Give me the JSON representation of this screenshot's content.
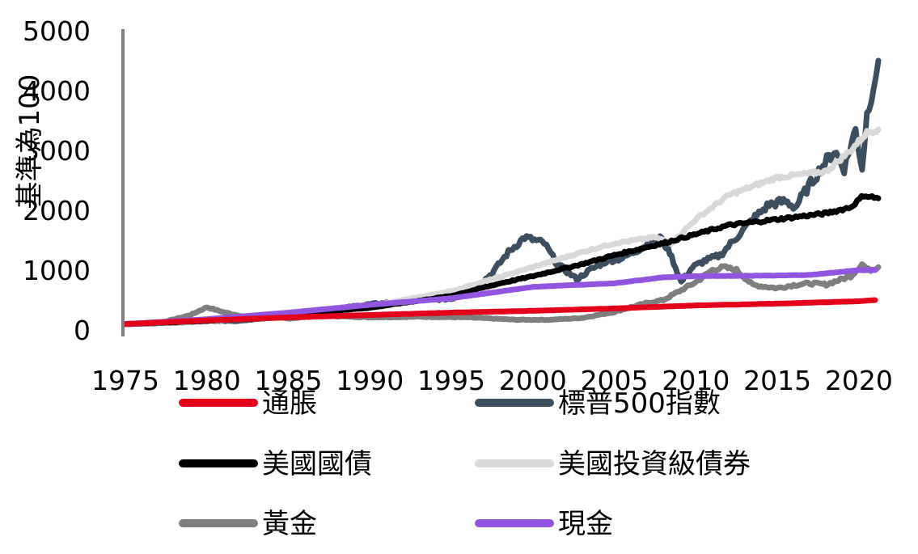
{
  "chart_data": {
    "type": "line",
    "title": "",
    "xlabel": "",
    "ylabel": "基準為100",
    "xlim": [
      1975,
      2021
    ],
    "ylim": [
      0,
      5000
    ],
    "grid": false,
    "legend_position": "bottom",
    "x_ticks": [
      "1975",
      "1980",
      "1985",
      "1990",
      "1995",
      "2000",
      "2005",
      "2010",
      "2015",
      "2020"
    ],
    "y_ticks": [
      "0",
      "1000",
      "2000",
      "3000",
      "4000",
      "5000"
    ],
    "series": [
      {
        "name": "通脹",
        "color": "#e3001b",
        "x": [
          1975,
          1980,
          1985,
          1990,
          1995,
          2000,
          2005,
          2010,
          2015,
          2020,
          2021
        ],
        "y": [
          100,
          160,
          210,
          250,
          290,
          320,
          360,
          410,
          440,
          480,
          500
        ]
      },
      {
        "name": "標普500指數",
        "color": "#3d4f5f",
        "x": [
          1975,
          1978,
          1980,
          1982,
          1985,
          1987,
          1990,
          1993,
          1995,
          1996.5,
          1997.5,
          1998.5,
          1999.5,
          2000.7,
          2001.5,
          2002.7,
          2003.5,
          2004.5,
          2005.5,
          2006.5,
          2007.8,
          2008.4,
          2009.1,
          2009.8,
          2010.5,
          2011.5,
          2012.5,
          2013.5,
          2014.5,
          2015.5,
          2016.1,
          2016.8,
          2017.8,
          2018.5,
          2019.1,
          2019.8,
          2020.2,
          2020.5,
          2020.9,
          2021.2
        ],
        "y": [
          100,
          120,
          150,
          150,
          240,
          320,
          430,
          500,
          520,
          700,
          950,
          1300,
          1550,
          1450,
          1100,
          850,
          1000,
          1150,
          1200,
          1350,
          1550,
          1300,
          800,
          1050,
          1150,
          1250,
          1550,
          1850,
          2100,
          2150,
          2050,
          2350,
          2750,
          3000,
          2700,
          3350,
          2700,
          3600,
          4100,
          4500
        ]
      },
      {
        "name": "美國國債",
        "color": "#000000",
        "x": [
          1975,
          1980,
          1985,
          1990,
          1995,
          1998,
          2000,
          2003,
          2005,
          2008,
          2010,
          2012,
          2015,
          2018,
          2019.5,
          2020.3,
          2021.2
        ],
        "y": [
          100,
          150,
          260,
          370,
          570,
          780,
          900,
          1100,
          1250,
          1450,
          1600,
          1750,
          1850,
          1950,
          2050,
          2250,
          2200
        ]
      },
      {
        "name": "美國投資級債券",
        "color": "#d9d9d9",
        "x": [
          1975,
          1980,
          1985,
          1990,
          1995,
          2000,
          2003,
          2005,
          2007.5,
          2008.5,
          2010,
          2012,
          2015,
          2018,
          2019.5,
          2020.5,
          2021.2
        ],
        "y": [
          100,
          140,
          270,
          400,
          650,
          1050,
          1300,
          1450,
          1550,
          1450,
          1850,
          2250,
          2550,
          2650,
          3000,
          3300,
          3350
        ]
      },
      {
        "name": "黃金",
        "color": "#7f7f7f",
        "x": [
          1975,
          1977,
          1979,
          1980,
          1981,
          1982.5,
          1983.5,
          1985,
          1987,
          1990,
          1993,
          1996,
          1999,
          2001,
          2003,
          2005,
          2006,
          2007,
          2008,
          2009,
          2010,
          2011,
          2011.7,
          2012.5,
          2013.5,
          2015,
          2016,
          2017,
          2018,
          2019.5,
          2020.2,
          2020.6,
          2021.2
        ],
        "y": [
          100,
          110,
          250,
          380,
          300,
          210,
          240,
          190,
          240,
          210,
          220,
          210,
          170,
          170,
          200,
          300,
          380,
          450,
          500,
          650,
          800,
          1000,
          1050,
          1000,
          750,
          700,
          750,
          780,
          760,
          900,
          1100,
          1000,
          1050
        ]
      },
      {
        "name": "現金",
        "color": "#9354e0",
        "x": [
          1975,
          1980,
          1985,
          1990,
          1995,
          2000,
          2005,
          2008,
          2010,
          2015,
          2017,
          2020,
          2021
        ],
        "y": [
          100,
          180,
          290,
          420,
          530,
          720,
          780,
          880,
          900,
          910,
          920,
          1000,
          1000
        ]
      }
    ]
  }
}
